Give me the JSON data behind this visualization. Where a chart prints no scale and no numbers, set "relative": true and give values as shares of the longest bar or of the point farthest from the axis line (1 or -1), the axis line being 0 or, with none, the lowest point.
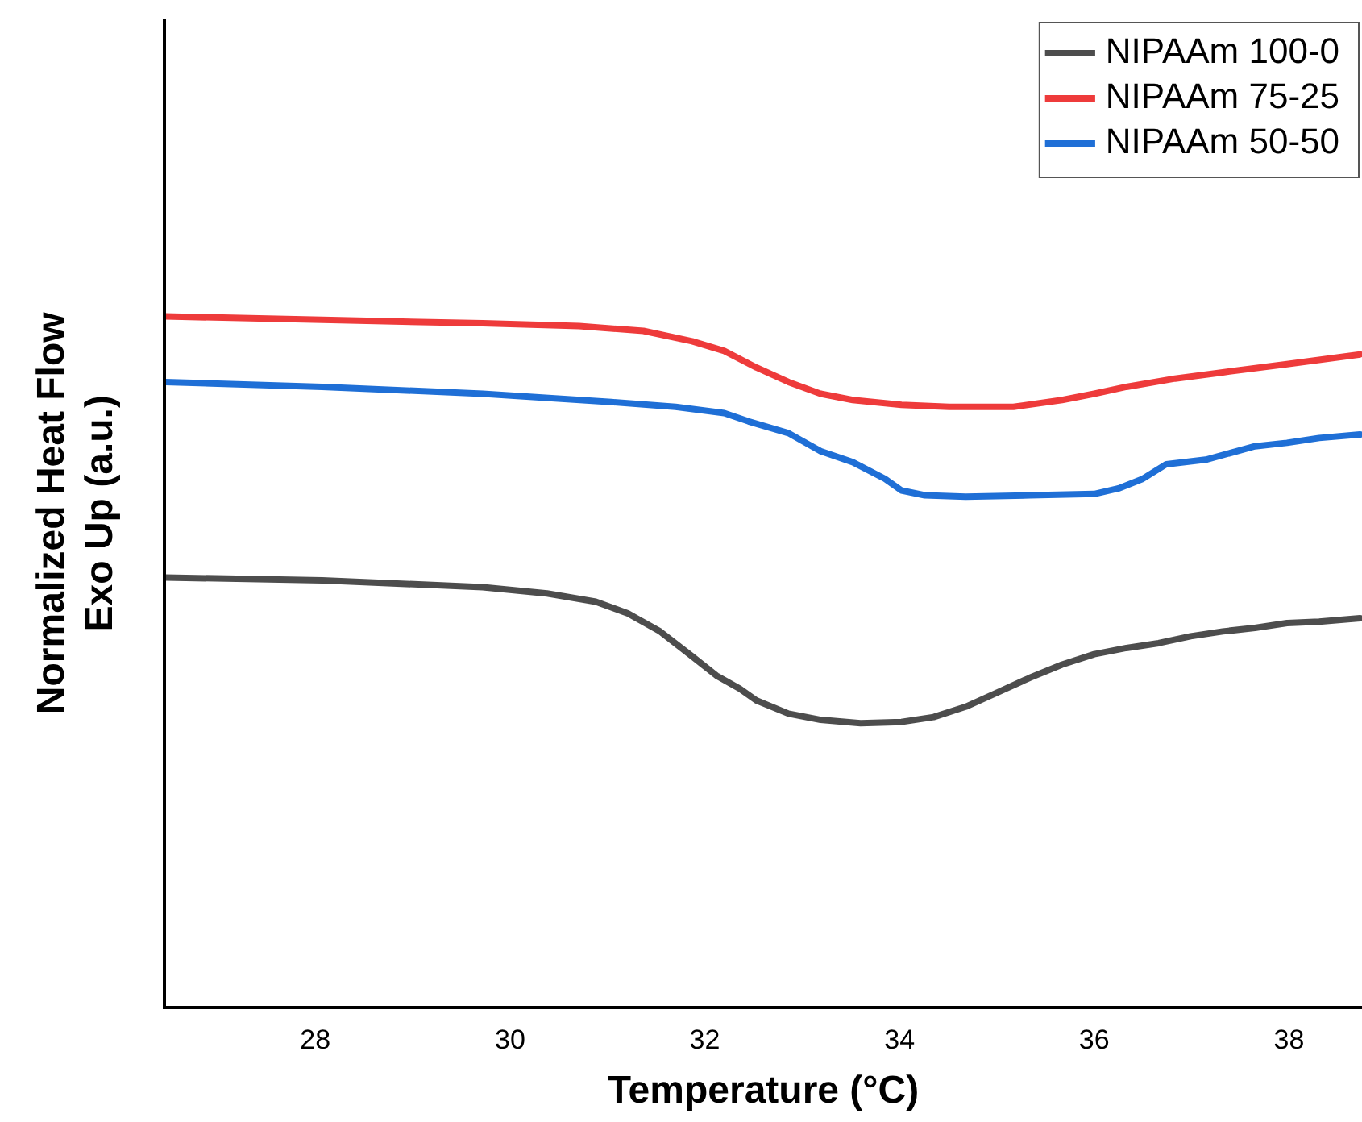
{
  "chart_data": {
    "type": "line",
    "relative": true,
    "xlabel": "Temperature (°C)",
    "ylabel": "Normalized Heat Flow\nExo Up (a.u.)",
    "xlim": [
      26.45,
      38.75
    ],
    "xticks": [
      28,
      30,
      32,
      34,
      36,
      38
    ],
    "grid": false,
    "legend": "top right",
    "marker": "none",
    "line_style": "solid",
    "series": [
      {
        "name": "NIPAAm 100-0",
        "color": "#4d4d4d",
        "x": [
          26.46,
          28.07,
          29.72,
          30.38,
          30.88,
          31.21,
          31.54,
          31.87,
          32.12,
          32.36,
          32.53,
          32.86,
          33.19,
          33.6,
          34.02,
          34.35,
          34.68,
          35.01,
          35.34,
          35.67,
          36.0,
          36.33,
          36.66,
          36.99,
          37.32,
          37.65,
          37.98,
          38.31,
          38.73
        ],
        "values": [
          0.622,
          0.618,
          0.608,
          0.599,
          0.587,
          0.57,
          0.544,
          0.508,
          0.48,
          0.461,
          0.444,
          0.425,
          0.416,
          0.411,
          0.413,
          0.42,
          0.435,
          0.456,
          0.477,
          0.496,
          0.511,
          0.52,
          0.527,
          0.537,
          0.544,
          0.549,
          0.556,
          0.558,
          0.563
        ]
      },
      {
        "name": "NIPAAm 75-25",
        "color": "#ee3b3b",
        "x": [
          26.46,
          28.07,
          29.72,
          30.71,
          31.37,
          31.87,
          32.2,
          32.53,
          32.86,
          33.19,
          33.52,
          34.02,
          34.51,
          35.17,
          35.67,
          36.0,
          36.33,
          36.83,
          37.32,
          37.98,
          38.73
        ],
        "values": [
          1.0,
          0.995,
          0.99,
          0.986,
          0.979,
          0.964,
          0.95,
          0.926,
          0.905,
          0.888,
          0.879,
          0.872,
          0.869,
          0.869,
          0.879,
          0.888,
          0.898,
          0.91,
          0.919,
          0.931,
          0.945
        ]
      },
      {
        "name": "NIPAAm 50-50",
        "color": "#1f6fd6",
        "x": [
          26.46,
          28.07,
          29.72,
          31.04,
          31.7,
          32.2,
          32.45,
          32.86,
          33.19,
          33.52,
          33.85,
          34.02,
          34.26,
          34.68,
          35.34,
          36.0,
          36.25,
          36.5,
          36.74,
          37.16,
          37.65,
          37.98,
          38.31,
          38.73
        ],
        "values": [
          0.905,
          0.898,
          0.888,
          0.876,
          0.869,
          0.86,
          0.848,
          0.831,
          0.805,
          0.789,
          0.765,
          0.748,
          0.741,
          0.739,
          0.741,
          0.743,
          0.751,
          0.765,
          0.786,
          0.793,
          0.812,
          0.817,
          0.824,
          0.829
        ]
      }
    ]
  }
}
